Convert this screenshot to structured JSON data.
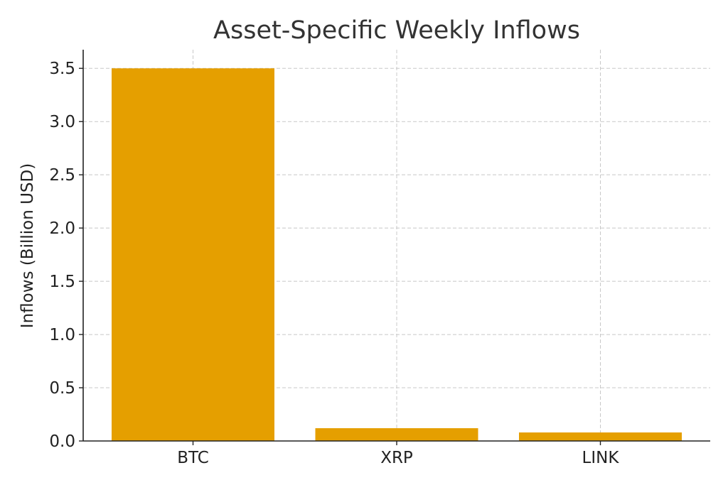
{
  "chart_data": {
    "type": "bar",
    "title": "Asset-Specific Weekly Inflows",
    "xlabel": "",
    "ylabel": "Inflows (Billion USD)",
    "categories": [
      "BTC",
      "XRP",
      "LINK"
    ],
    "values": [
      3.5,
      0.12,
      0.08
    ],
    "ylim": [
      0,
      3.675
    ],
    "yticks": [
      0.0,
      0.5,
      1.0,
      1.5,
      2.0,
      2.5,
      3.0,
      3.5
    ],
    "ytick_labels": [
      "0.0",
      "0.5",
      "1.0",
      "1.5",
      "2.0",
      "2.5",
      "3.0",
      "3.5"
    ],
    "grid": true,
    "bar_color": "#e59f00",
    "legend": null
  }
}
